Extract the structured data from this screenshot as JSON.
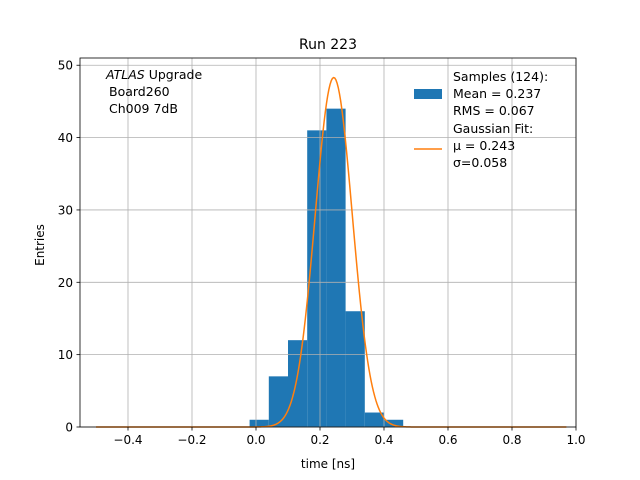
{
  "chart_data": {
    "type": "bar",
    "title": "Run 223",
    "xlabel": "time [ns]",
    "ylabel": "Entries",
    "xlim": [
      -0.55,
      1.0
    ],
    "ylim": [
      0,
      51
    ],
    "xticks": [
      -0.4,
      -0.2,
      0.0,
      0.2,
      0.4,
      0.6,
      0.8,
      1.0
    ],
    "xtick_labels": [
      "−0.4",
      "−0.2",
      "0.0",
      "0.2",
      "0.4",
      "0.6",
      "0.8",
      "1.0"
    ],
    "yticks": [
      0,
      10,
      20,
      30,
      40,
      50
    ],
    "ytick_labels": [
      "0",
      "10",
      "20",
      "30",
      "40",
      "50"
    ],
    "grid": true,
    "legend_position": "top-right",
    "annotation": {
      "italic": "ATLAS",
      "line1_rest": " Upgrade",
      "line2": "Board260",
      "line3": "Ch009 7dB"
    },
    "histogram": {
      "name_lines": [
        "Samples (124):",
        " Mean = 0.237",
        " RMS = 0.067"
      ],
      "color": "#1f77b4",
      "bin_edges": [
        -0.5,
        -0.44,
        -0.38,
        -0.32,
        -0.26,
        -0.2,
        -0.14,
        -0.08,
        -0.02,
        0.04,
        0.1,
        0.16,
        0.22,
        0.28,
        0.34,
        0.4,
        0.46,
        0.52,
        0.58,
        0.64,
        0.7,
        0.76,
        0.82,
        0.88,
        0.94
      ],
      "counts": [
        0,
        0,
        0,
        0,
        0,
        0,
        0,
        0,
        1,
        7,
        12,
        41,
        44,
        16,
        2,
        1,
        0,
        0,
        0,
        0,
        0,
        0,
        0,
        0
      ]
    },
    "fit": {
      "name_lines": [
        "Gaussian Fit:",
        " μ = 0.243",
        " σ=0.058"
      ],
      "color": "#ff7f0e",
      "type": "gaussian",
      "mu": 0.243,
      "sigma": 0.058,
      "amplitude": 48.3,
      "x_range": [
        -0.5,
        0.97
      ]
    }
  }
}
